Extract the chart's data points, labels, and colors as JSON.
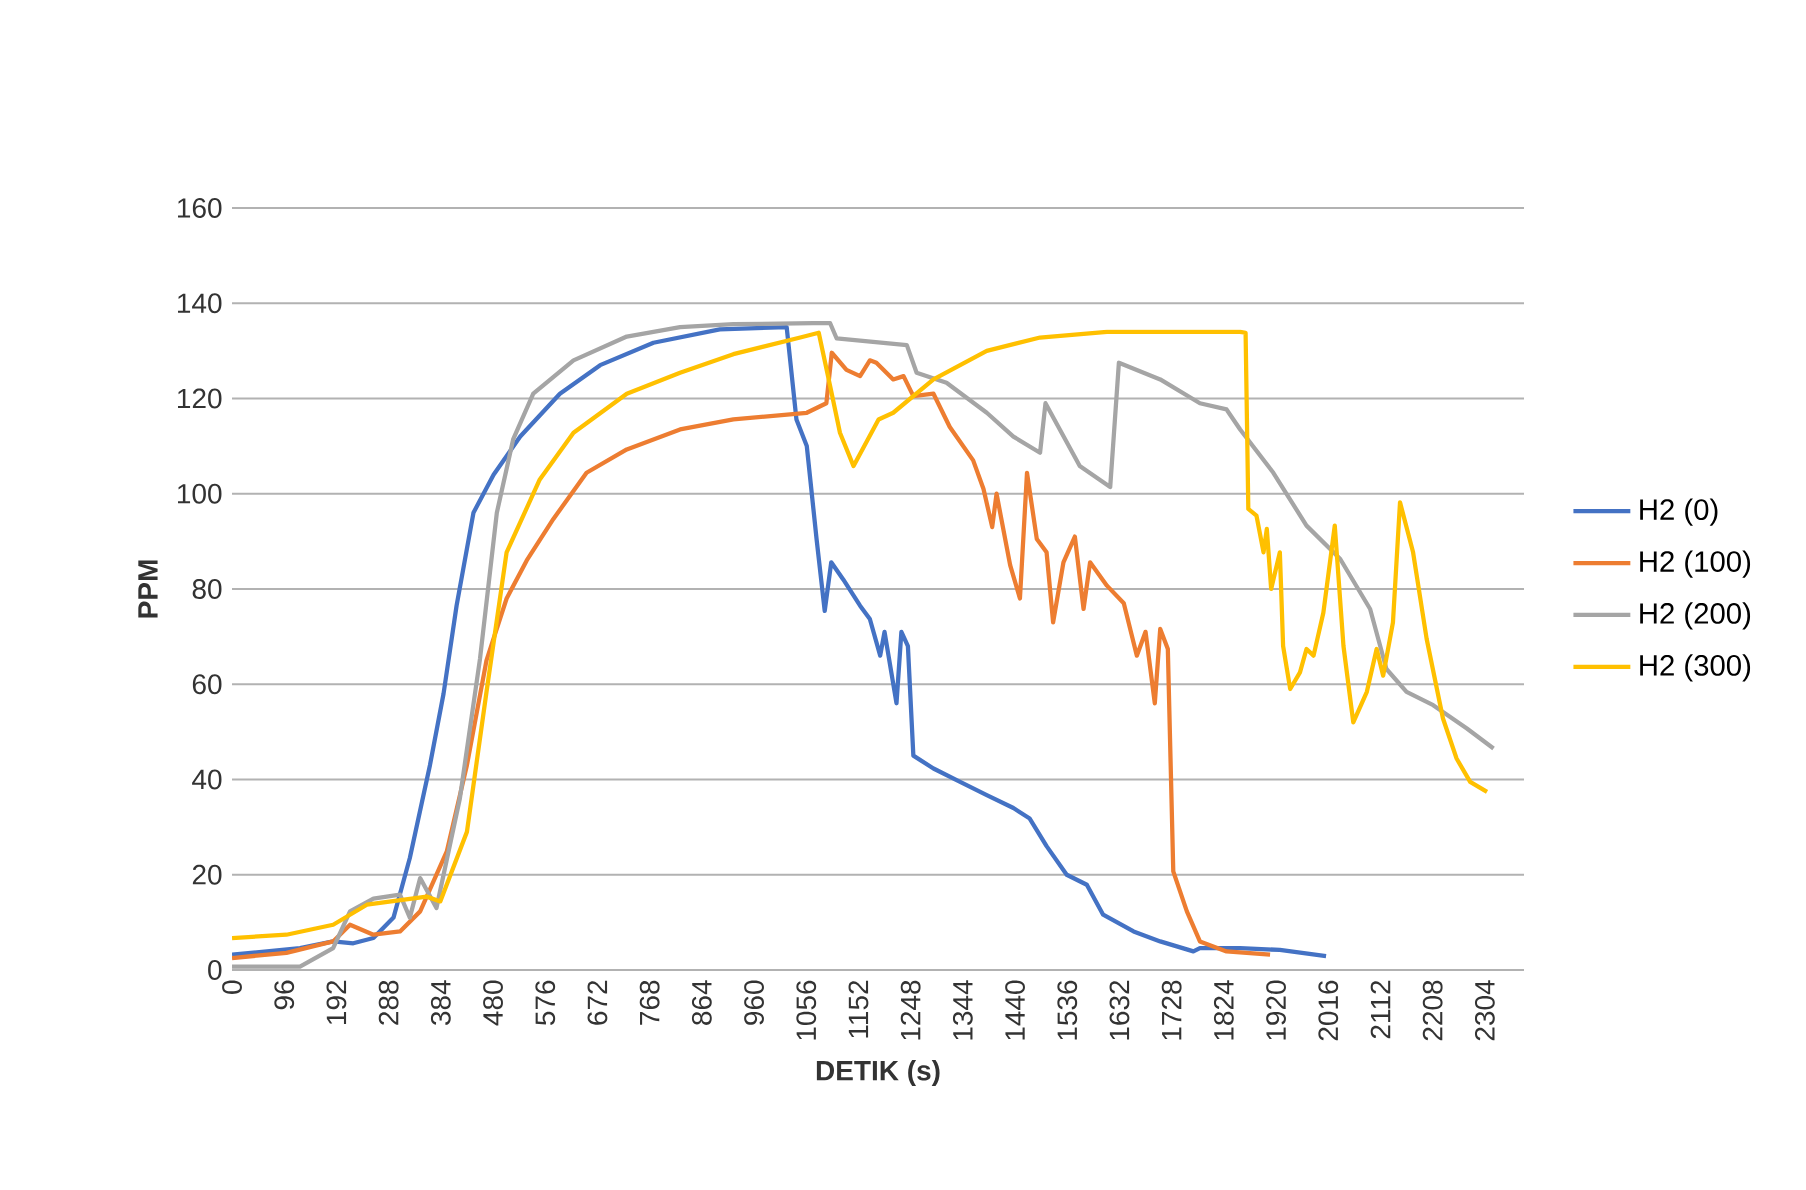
{
  "chart_data": {
    "type": "line",
    "xlabel": "DETIK (s)",
    "ylabel": "PPM",
    "xlim": [
      0,
      2376
    ],
    "xticks": [
      0,
      96,
      192,
      288,
      384,
      480,
      576,
      672,
      768,
      864,
      960,
      1056,
      1152,
      1248,
      1344,
      1440,
      1536,
      1632,
      1728,
      1824,
      1920,
      2016,
      2112,
      2208,
      2304
    ],
    "ylim": [
      0,
      160
    ],
    "yticks": [
      0,
      20,
      40,
      60,
      80,
      100,
      120,
      140,
      160
    ],
    "grid": "y",
    "legend": "right",
    "series": [
      {
        "name": "H2 (0)",
        "color": "#4472c4",
        "x": [
          0,
          125,
          186,
          223,
          260,
          297,
          327,
          364,
          389,
          413,
          444,
          481,
          530,
          603,
          677,
          775,
          897,
          1020,
          1038,
          1057,
          1075,
          1090,
          1102,
          1124,
          1155,
          1173,
          1192,
          1200,
          1222,
          1231,
          1243,
          1253,
          1290,
          1339,
          1388,
          1437,
          1467,
          1498,
          1535,
          1572,
          1602,
          1658,
          1707,
          1768,
          1780,
          1854,
          1927,
          2012
        ],
        "values": [
          3.2,
          4.6,
          6,
          5.6,
          6.7,
          11,
          23.5,
          43,
          58,
          76.5,
          96,
          104,
          112,
          121,
          127,
          131.7,
          134.5,
          135,
          115.6,
          110,
          90.5,
          75.4,
          85.6,
          82,
          76.5,
          73.7,
          66,
          71,
          56,
          71,
          68,
          45,
          42.3,
          39.5,
          36.7,
          34,
          31.8,
          26,
          20,
          17.9,
          11.6,
          8.1,
          6,
          3.9,
          4.6,
          4.6,
          4.2,
          2.9
        ]
      },
      {
        "name": "H2 (100)",
        "color": "#ed7d31",
        "x": [
          0,
          100,
          186,
          217,
          260,
          309,
          346,
          395,
          432,
          468,
          505,
          542,
          591,
          652,
          726,
          824,
          922,
          1057,
          1093,
          1103,
          1130,
          1155,
          1173,
          1185,
          1216,
          1235,
          1253,
          1290,
          1320,
          1363,
          1382,
          1398,
          1406,
          1431,
          1449,
          1462,
          1480,
          1498,
          1510,
          1529,
          1550,
          1566,
          1578,
          1609,
          1640,
          1664,
          1680,
          1697,
          1707,
          1721,
          1731,
          1756,
          1780,
          1829,
          1909
        ],
        "values": [
          2.5,
          3.6,
          6,
          9.5,
          7.4,
          8.1,
          12.3,
          24.9,
          43,
          65,
          78,
          86,
          94.7,
          104.4,
          109.3,
          113.5,
          115.6,
          117,
          119,
          129.6,
          126,
          124.7,
          128,
          127.5,
          124,
          124.7,
          120.5,
          121,
          114,
          107,
          101,
          93,
          100,
          85,
          78,
          104.4,
          90.5,
          87.7,
          73,
          85.6,
          91,
          75.8,
          85.6,
          80.7,
          77,
          66,
          71,
          56,
          71.6,
          67.4,
          20.7,
          12.3,
          6,
          3.9,
          3.2
        ]
      },
      {
        "name": "H2 (200)",
        "color": "#a5a5a5",
        "x": [
          0,
          125,
          186,
          217,
          260,
          309,
          327,
          346,
          376,
          419,
          456,
          487,
          517,
          554,
          628,
          726,
          824,
          922,
          1069,
          1100,
          1112,
          1241,
          1259,
          1314,
          1388,
          1437,
          1486,
          1496,
          1559,
          1615,
          1631,
          1707,
          1780,
          1829,
          1854,
          1915,
          1976,
          2038,
          2093,
          2123,
          2160,
          2209,
          2271,
          2320
        ],
        "values": [
          0.7,
          0.7,
          4.6,
          12.3,
          15,
          15.8,
          11,
          19.3,
          13,
          36,
          65.3,
          96,
          111.4,
          121,
          128,
          133,
          135,
          135.6,
          135.8,
          135.8,
          132.6,
          131.2,
          125.4,
          123.3,
          117,
          112,
          108.6,
          119,
          105.8,
          101.4,
          127.5,
          124,
          119,
          117.7,
          113.5,
          104.4,
          93.3,
          86.3,
          75.8,
          63.2,
          58.4,
          55.6,
          50.7,
          46.5
        ]
      },
      {
        "name": "H2 (300)",
        "color": "#ffc000",
        "x": [
          0,
          100,
          186,
          248,
          358,
          383,
          432,
          468,
          505,
          566,
          628,
          726,
          824,
          922,
          1045,
          1079,
          1100,
          1118,
          1143,
          1189,
          1216,
          1290,
          1388,
          1486,
          1609,
          1854,
          1864,
          1869,
          1884,
          1897,
          1903,
          1911,
          1927,
          1933,
          1946,
          1964,
          1976,
          1989,
          2007,
          2028,
          2044,
          2062,
          2087,
          2105,
          2117,
          2135,
          2148,
          2172,
          2197,
          2227,
          2252,
          2277,
          2308
        ],
        "values": [
          6.7,
          7.4,
          9.5,
          13.7,
          15.4,
          14.4,
          29,
          58.4,
          87.7,
          103,
          112.8,
          121,
          125.4,
          129.3,
          132.8,
          133.8,
          122.6,
          112.8,
          105.8,
          115.6,
          117,
          124,
          130,
          132.8,
          134,
          134,
          133.8,
          96.8,
          95.4,
          87.7,
          92.6,
          80,
          87.7,
          68,
          59,
          62.5,
          67.4,
          66,
          75,
          93.3,
          68,
          52,
          58.4,
          67.4,
          61.8,
          73,
          98.2,
          87.7,
          69.5,
          52.8,
          44.4,
          39.5,
          37.4
        ]
      }
    ]
  }
}
